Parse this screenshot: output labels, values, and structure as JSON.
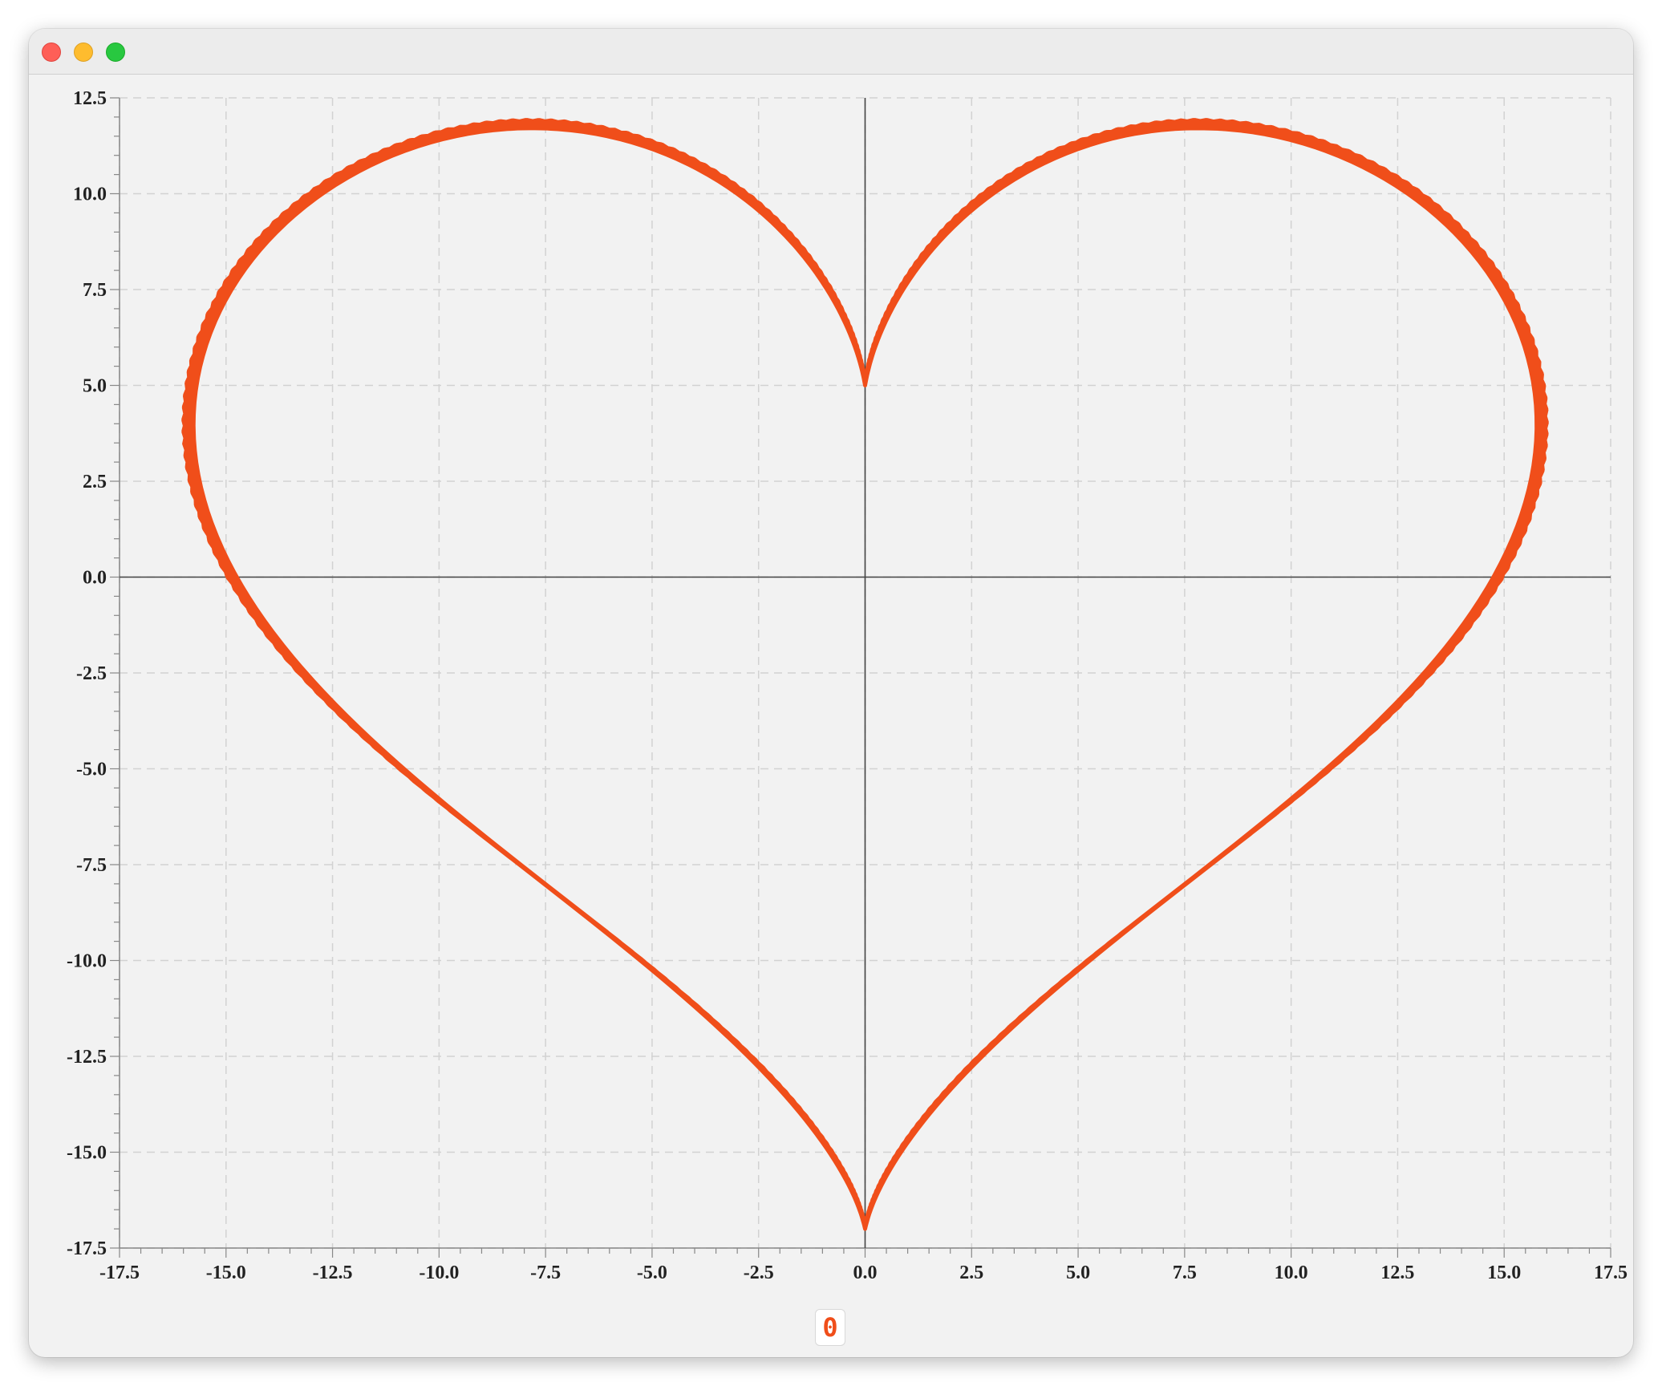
{
  "window": {
    "controls": [
      "close",
      "minimize",
      "maximize"
    ],
    "control_colors": {
      "close": "#fe5f57",
      "minimize": "#febc2e",
      "maximize": "#28c840"
    }
  },
  "chart_data": {
    "type": "line",
    "title": "",
    "xlabel": "",
    "ylabel": "",
    "xlim": [
      -17.5,
      17.5
    ],
    "ylim": [
      -17.5,
      12.5
    ],
    "x_ticks": [
      "-17.5",
      "-15.0",
      "-12.5",
      "-10.0",
      "-7.5",
      "-5.0",
      "-2.5",
      "0.0",
      "2.5",
      "5.0",
      "7.5",
      "10.0",
      "12.5",
      "15.0",
      "17.5"
    ],
    "y_ticks": [
      "12.5",
      "10.0",
      "7.5",
      "5.0",
      "2.5",
      "0.0",
      "-2.5",
      "-5.0",
      "-7.5",
      "-10.0",
      "-12.5",
      "-15.0",
      "-17.5"
    ],
    "grid": true,
    "grid_style": "dashed",
    "axes_through_origin": true,
    "legend_position": "bottom-center",
    "series": [
      {
        "name": "0",
        "color": "#f04e1a",
        "curve": "heart",
        "equation": {
          "x": "16*sin(t)^3",
          "y": "13*cos(t) - 5*cos(2t) - 2*cos(3t) - cos(4t)"
        },
        "t_range": [
          0,
          6.2832
        ],
        "samples": 720,
        "parameter_step": 0.2,
        "x_range": [
          -16.0,
          16.0
        ],
        "y_range": [
          -17.0,
          11.9
        ]
      }
    ]
  }
}
